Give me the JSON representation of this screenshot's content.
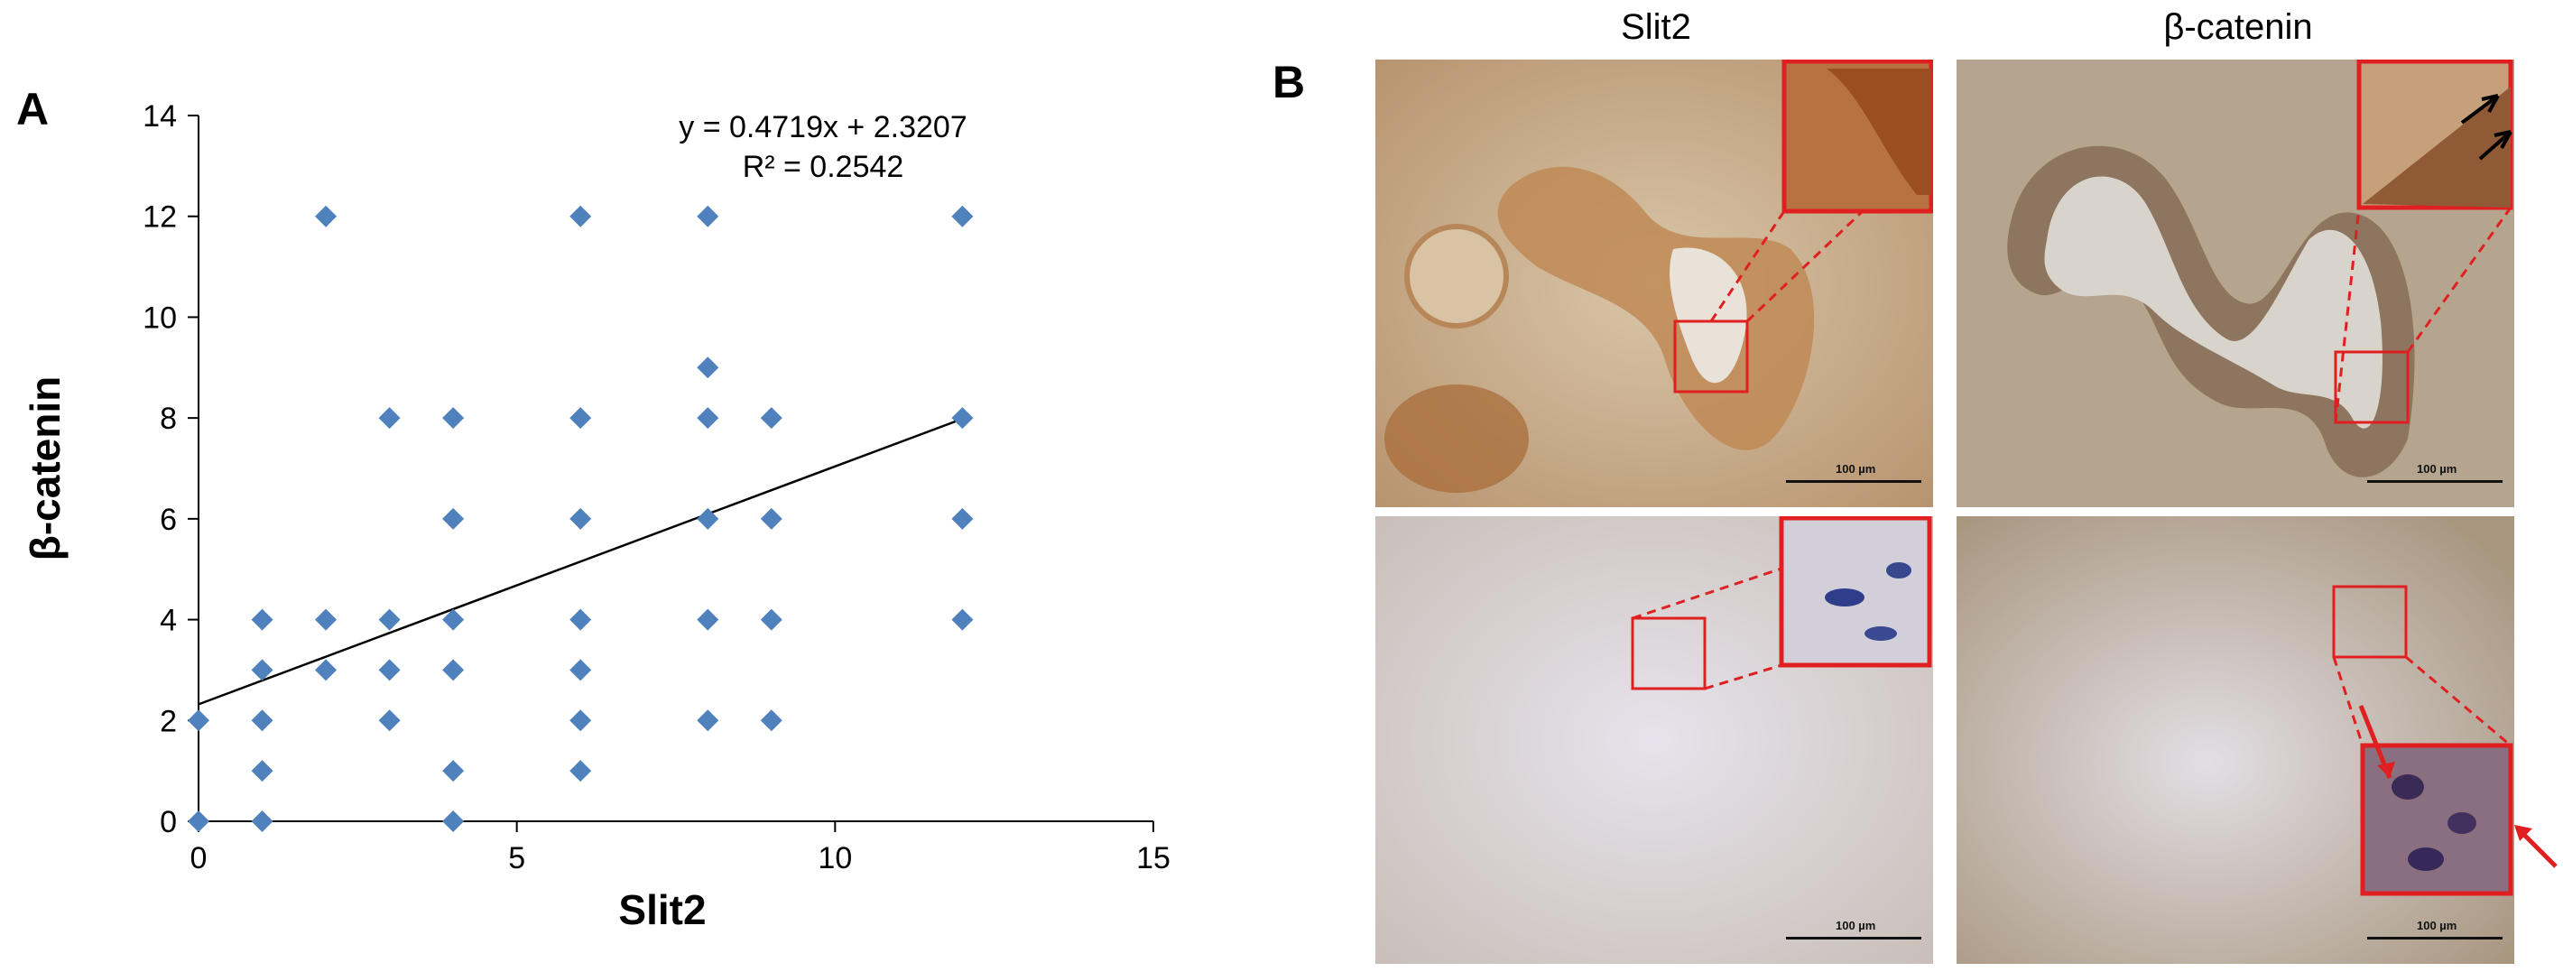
{
  "panel_a": {
    "letter": "A"
  },
  "panel_b": {
    "letter": "B",
    "col1_title": "Slit2",
    "col2_title": "β-catenin",
    "scale_label": "100 µm"
  },
  "chart_data": {
    "type": "scatter",
    "xlabel": "Slit2",
    "ylabel": "β-catenin",
    "xlim": [
      0,
      15
    ],
    "ylim": [
      0,
      14
    ],
    "xticks": [
      0,
      5,
      10,
      15
    ],
    "yticks": [
      0,
      2,
      4,
      6,
      8,
      10,
      12,
      14
    ],
    "points": [
      [
        0,
        0
      ],
      [
        0,
        2
      ],
      [
        1,
        0
      ],
      [
        1,
        1
      ],
      [
        1,
        2
      ],
      [
        1,
        3
      ],
      [
        1,
        4
      ],
      [
        2,
        3
      ],
      [
        2,
        4
      ],
      [
        2,
        12
      ],
      [
        3,
        2
      ],
      [
        3,
        3
      ],
      [
        3,
        4
      ],
      [
        3,
        8
      ],
      [
        4,
        0
      ],
      [
        4,
        1
      ],
      [
        4,
        3
      ],
      [
        4,
        4
      ],
      [
        4,
        6
      ],
      [
        4,
        8
      ],
      [
        6,
        1
      ],
      [
        6,
        2
      ],
      [
        6,
        3
      ],
      [
        6,
        4
      ],
      [
        6,
        6
      ],
      [
        6,
        8
      ],
      [
        6,
        12
      ],
      [
        8,
        2
      ],
      [
        8,
        4
      ],
      [
        8,
        6
      ],
      [
        8,
        8
      ],
      [
        8,
        9
      ],
      [
        8,
        12
      ],
      [
        9,
        2
      ],
      [
        9,
        4
      ],
      [
        9,
        6
      ],
      [
        9,
        8
      ],
      [
        12,
        4
      ],
      [
        12,
        6
      ],
      [
        12,
        8
      ],
      [
        12,
        12
      ]
    ],
    "trendline": {
      "slope": 0.4719,
      "intercept": 2.3207,
      "x_range": [
        0,
        12
      ]
    },
    "equation": "y = 0.4719x + 2.3207",
    "r_squared": "R² = 0.2542",
    "marker_color": "#4F81BD"
  }
}
